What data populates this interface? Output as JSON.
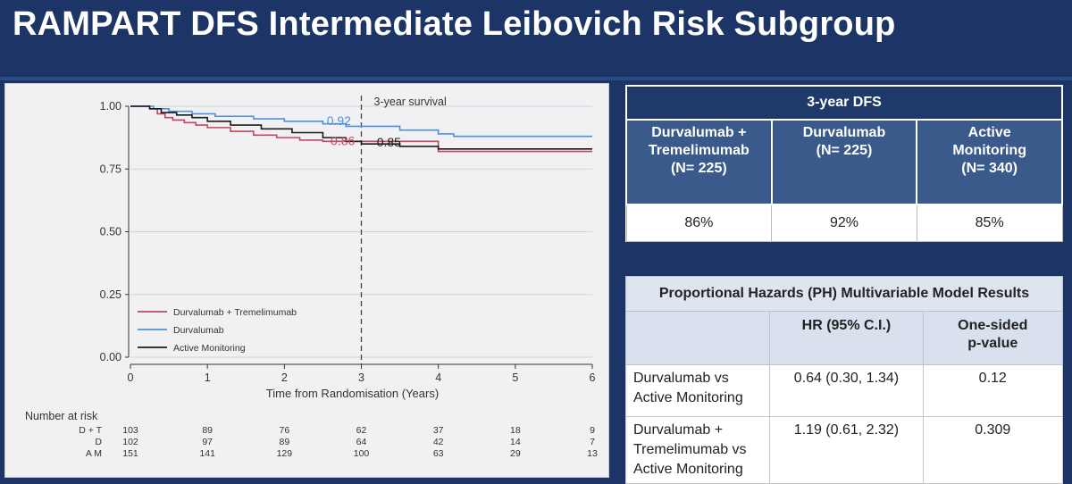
{
  "title": "RAMPART DFS Intermediate Leibovich Risk Subgroup",
  "chart_data": {
    "type": "line",
    "subtype": "kaplan-meier-step",
    "xlabel": "Time from Randomisation (Years)",
    "x_ticks": [
      0,
      1,
      2,
      3,
      4,
      5,
      6
    ],
    "y_ticks": [
      "0.00",
      "0.25",
      "0.50",
      "0.75",
      "1.00"
    ],
    "xlim": [
      0,
      6
    ],
    "ylim": [
      0,
      1
    ],
    "grid": true,
    "legend_position": "bottom-left",
    "reference_line": {
      "x": 3,
      "label": "3-year survival"
    },
    "series": [
      {
        "name": "Durvalumab + Tremelimumab",
        "color": "#c0475f",
        "x": [
          0,
          0.25,
          0.35,
          0.45,
          0.55,
          0.7,
          0.85,
          1.0,
          1.3,
          1.6,
          1.9,
          2.2,
          2.5,
          2.8,
          3.0,
          3.5,
          4.0,
          6.0
        ],
        "y": [
          1.0,
          0.99,
          0.97,
          0.955,
          0.945,
          0.935,
          0.925,
          0.915,
          0.9,
          0.885,
          0.875,
          0.865,
          0.86,
          0.86,
          0.86,
          0.86,
          0.82,
          0.82
        ]
      },
      {
        "name": "Durvalumab",
        "color": "#4f8fe0",
        "x": [
          0,
          0.3,
          0.5,
          0.8,
          1.1,
          1.6,
          2.0,
          2.5,
          2.8,
          3.0,
          3.5,
          4.0,
          4.2,
          6.0
        ],
        "y": [
          1.0,
          0.99,
          0.98,
          0.97,
          0.96,
          0.95,
          0.94,
          0.93,
          0.92,
          0.92,
          0.905,
          0.89,
          0.88,
          0.88
        ]
      },
      {
        "name": "Active Monitoring",
        "color": "#1a1a1a",
        "x": [
          0,
          0.25,
          0.4,
          0.6,
          0.8,
          1.0,
          1.3,
          1.7,
          2.1,
          2.5,
          2.8,
          3.0,
          3.5,
          4.0,
          6.0
        ],
        "y": [
          1.0,
          0.99,
          0.975,
          0.965,
          0.955,
          0.94,
          0.925,
          0.91,
          0.895,
          0.875,
          0.86,
          0.85,
          0.84,
          0.83,
          0.83
        ]
      }
    ],
    "annotations": [
      {
        "text": "0.92",
        "x": 2.55,
        "y": 0.925,
        "color": "#4f8fe0"
      },
      {
        "text": "0.86",
        "x": 2.6,
        "y": 0.845,
        "color": "#c0475f"
      },
      {
        "text": "0.85",
        "x": 3.2,
        "y": 0.84,
        "color": "#1a1a1a"
      }
    ],
    "risk_table": {
      "header": "Number at risk",
      "rows": [
        {
          "label": "D + T",
          "values": [
            103,
            89,
            76,
            62,
            37,
            18,
            9
          ]
        },
        {
          "label": "D",
          "values": [
            102,
            97,
            89,
            64,
            42,
            14,
            7
          ]
        },
        {
          "label": "A M",
          "values": [
            151,
            141,
            129,
            100,
            63,
            29,
            13
          ]
        }
      ]
    }
  },
  "dfs_table": {
    "caption": "3-year DFS",
    "columns": [
      {
        "l1": "Durvalumab +",
        "l2": "Tremelimumab",
        "l3": "(N= 225)"
      },
      {
        "l1": "Durvalumab",
        "l2": "(N= 225)",
        "l3": ""
      },
      {
        "l1": "Active",
        "l2": "Monitoring",
        "l3": "(N= 340)"
      }
    ],
    "values": [
      "86%",
      "92%",
      "85%"
    ]
  },
  "ph_table": {
    "caption": "Proportional Hazards (PH) Multivariable Model Results",
    "headers": {
      "hr": "HR (95% C.I.)",
      "p_l1": "One-sided",
      "p_l2": "p-value"
    },
    "rows": [
      {
        "l1": "Durvalumab vs",
        "l2": "Active Monitoring",
        "l3": "",
        "hr": "0.64 (0.30, 1.34)",
        "p": "0.12"
      },
      {
        "l1": "Durvalumab +",
        "l2": "Tremelimumab vs",
        "l3": "Active Monitoring",
        "hr": "1.19 (0.61, 2.32)",
        "p": "0.309"
      }
    ]
  }
}
